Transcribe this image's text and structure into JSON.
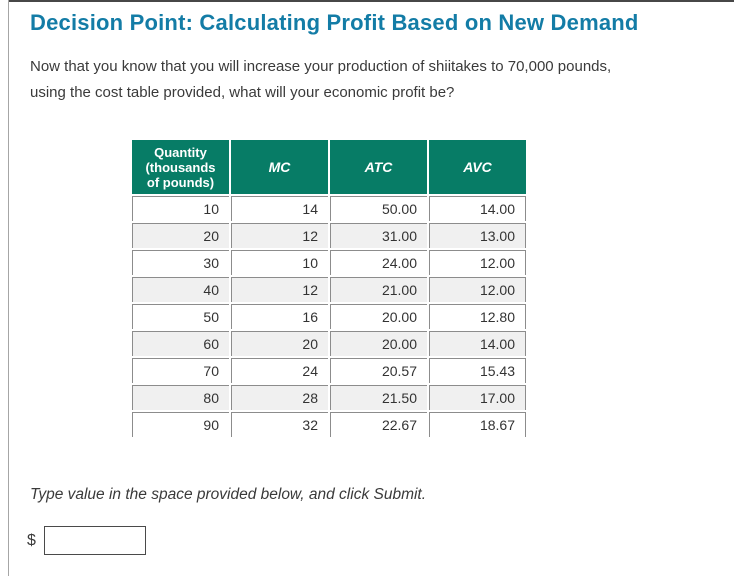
{
  "colors": {
    "title_accent": "#137CA6",
    "table_header_bg": "#077C66",
    "table_header_text": "#FFFFFF",
    "row_stripe": "#F0F0F0",
    "cell_border": "#8C8C8C",
    "body_text": "#3A3A3A"
  },
  "page": {
    "title": "Decision Point: Calculating Profit Based on New Demand",
    "question": "Now that you know that you will increase your production of shiitakes to 70,000 pounds,\nusing the cost table provided, what will your economic profit be?",
    "instruction": "Type value in the space provided below, and click Submit.",
    "currency_symbol": "$"
  },
  "answer_input": {
    "value": ""
  },
  "table": {
    "headers": [
      "Quantity\n(thousands\nof pounds)",
      "MC",
      "ATC",
      "AVC"
    ],
    "rows": [
      [
        "10",
        "14",
        "50.00",
        "14.00"
      ],
      [
        "20",
        "12",
        "31.00",
        "13.00"
      ],
      [
        "30",
        "10",
        "24.00",
        "12.00"
      ],
      [
        "40",
        "12",
        "21.00",
        "12.00"
      ],
      [
        "50",
        "16",
        "20.00",
        "12.80"
      ],
      [
        "60",
        "20",
        "20.00",
        "14.00"
      ],
      [
        "70",
        "24",
        "20.57",
        "15.43"
      ],
      [
        "80",
        "28",
        "21.50",
        "17.00"
      ],
      [
        "90",
        "32",
        "22.67",
        "18.67"
      ]
    ]
  },
  "chart_data": {
    "type": "table",
    "title": "Cost table for shiitake production",
    "columns": [
      "Quantity (thousands of pounds)",
      "MC",
      "ATC",
      "AVC"
    ],
    "rows": [
      [
        10,
        14,
        50.0,
        14.0
      ],
      [
        20,
        12,
        31.0,
        13.0
      ],
      [
        30,
        10,
        24.0,
        12.0
      ],
      [
        40,
        12,
        21.0,
        12.0
      ],
      [
        50,
        16,
        20.0,
        12.8
      ],
      [
        60,
        20,
        20.0,
        14.0
      ],
      [
        70,
        24,
        20.57,
        15.43
      ],
      [
        80,
        28,
        21.5,
        17.0
      ],
      [
        90,
        32,
        22.67,
        18.67
      ]
    ]
  }
}
